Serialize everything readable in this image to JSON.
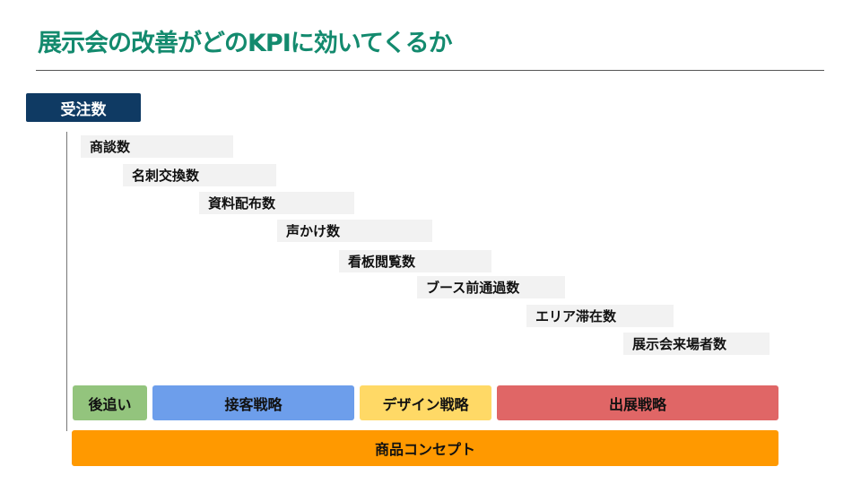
{
  "title": "展示会の改善がどのKPIに効いてくるか",
  "top_kpi": "受注数",
  "kpis": [
    "商談数",
    "名刺交換数",
    "資料配布数",
    "声かけ数",
    "看板閲覧数",
    "ブース前通過数",
    "エリア滞在数",
    "展示会来場者数"
  ],
  "strategies": [
    {
      "label": "後追い",
      "color": "#93c47d"
    },
    {
      "label": "接客戦略",
      "color": "#6d9eeb"
    },
    {
      "label": "デザイン戦略",
      "color": "#ffd966"
    },
    {
      "label": "出展戦略",
      "color": "#e06666"
    }
  ],
  "base": {
    "label": "商品コンセプト",
    "color": "#ff9900"
  }
}
